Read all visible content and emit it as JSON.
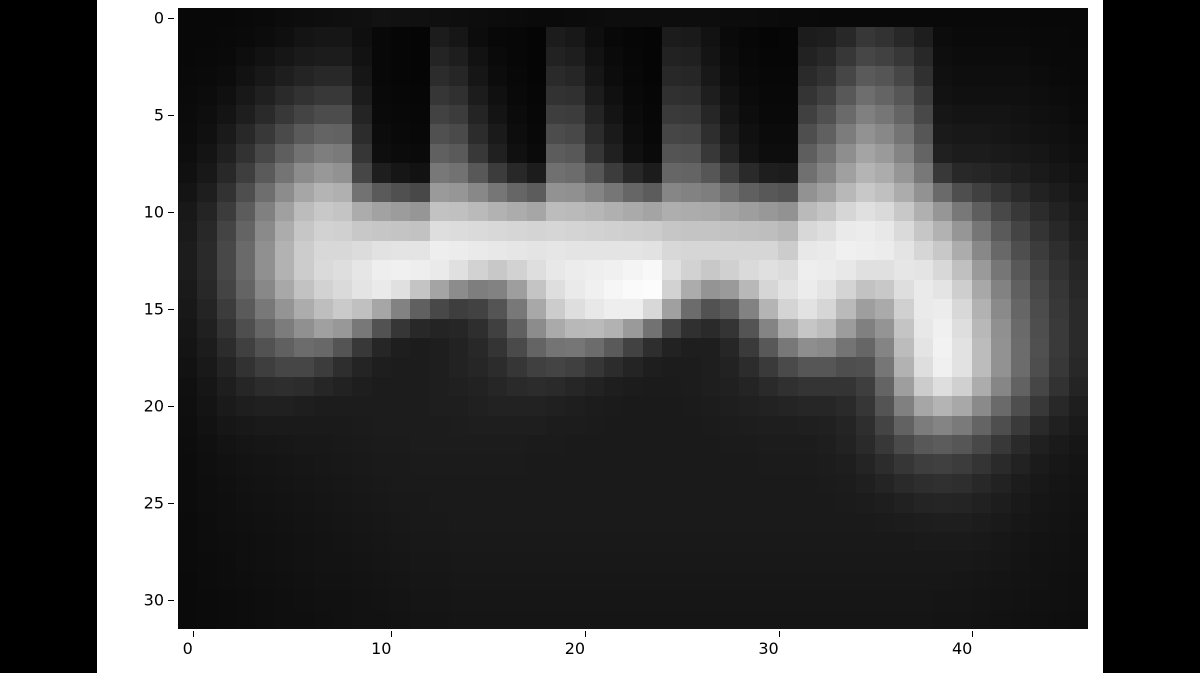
{
  "figure": {
    "background_color": "#000000",
    "panel_color": "#ffffff",
    "font_family": "DejaVu Sans",
    "tick_fontsize": 16,
    "tick_color": "#000000"
  },
  "heatmap": {
    "type": "heatmap",
    "cmap": "gray",
    "interpolation": "nearest",
    "aspect": "auto",
    "vmin": 0,
    "vmax": 255,
    "ncols": 47,
    "nrows": 32,
    "xlim": [
      -0.5,
      46.5
    ],
    "ylim": [
      31.5,
      -0.5
    ],
    "xticks": [
      0,
      10,
      20,
      30,
      40
    ],
    "yticks": [
      0,
      5,
      10,
      15,
      20,
      25,
      30
    ],
    "xtick_labels": [
      "0",
      "10",
      "20",
      "30",
      "40"
    ],
    "ytick_labels": [
      "0",
      "5",
      "10",
      "15",
      "20",
      "25",
      "30"
    ],
    "data": [
      [
        8,
        8,
        8,
        9,
        10,
        12,
        13,
        14,
        15,
        16,
        18,
        17,
        16,
        15,
        14,
        13,
        12,
        11,
        10,
        10,
        11,
        12,
        13,
        13,
        13,
        13,
        13,
        13,
        12,
        12,
        11,
        10,
        10,
        9,
        9,
        9,
        9,
        9,
        9,
        9,
        9,
        9,
        9,
        9,
        8,
        8,
        8
      ],
      [
        8,
        8,
        9,
        10,
        12,
        15,
        20,
        22,
        22,
        15,
        8,
        6,
        5,
        28,
        22,
        12,
        8,
        7,
        5,
        28,
        24,
        14,
        8,
        6,
        5,
        28,
        26,
        18,
        10,
        7,
        5,
        6,
        28,
        30,
        40,
        55,
        50,
        40,
        30,
        12,
        10,
        10,
        10,
        10,
        9,
        9,
        8
      ],
      [
        8,
        9,
        10,
        14,
        18,
        22,
        26,
        28,
        28,
        18,
        8,
        6,
        5,
        36,
        30,
        18,
        10,
        7,
        5,
        34,
        30,
        18,
        10,
        7,
        5,
        34,
        32,
        20,
        12,
        8,
        6,
        6,
        34,
        40,
        55,
        70,
        65,
        55,
        40,
        14,
        12,
        12,
        12,
        12,
        10,
        9,
        9
      ],
      [
        9,
        10,
        12,
        18,
        24,
        30,
        36,
        40,
        40,
        22,
        8,
        6,
        5,
        44,
        38,
        22,
        12,
        8,
        5,
        42,
        38,
        22,
        12,
        8,
        5,
        40,
        38,
        24,
        14,
        9,
        7,
        7,
        42,
        50,
        70,
        90,
        85,
        70,
        48,
        16,
        14,
        14,
        14,
        14,
        12,
        10,
        9
      ],
      [
        10,
        12,
        16,
        24,
        32,
        42,
        50,
        56,
        56,
        28,
        9,
        7,
        6,
        54,
        48,
        28,
        16,
        9,
        6,
        50,
        48,
        28,
        16,
        9,
        6,
        48,
        46,
        30,
        18,
        11,
        8,
        8,
        52,
        64,
        88,
        110,
        100,
        86,
        60,
        18,
        16,
        16,
        16,
        16,
        14,
        12,
        10
      ],
      [
        11,
        14,
        20,
        30,
        42,
        56,
        68,
        76,
        76,
        36,
        10,
        8,
        7,
        66,
        60,
        36,
        20,
        11,
        7,
        62,
        60,
        36,
        20,
        11,
        7,
        58,
        56,
        38,
        22,
        13,
        9,
        9,
        64,
        80,
        106,
        128,
        118,
        100,
        72,
        22,
        20,
        20,
        20,
        18,
        16,
        14,
        11
      ],
      [
        12,
        16,
        26,
        40,
        56,
        74,
        90,
        100,
        98,
        44,
        12,
        9,
        8,
        80,
        74,
        44,
        26,
        13,
        8,
        76,
        72,
        44,
        26,
        13,
        8,
        70,
        68,
        46,
        28,
        16,
        11,
        11,
        78,
        96,
        124,
        146,
        136,
        116,
        86,
        26,
        24,
        24,
        22,
        20,
        18,
        16,
        13
      ],
      [
        14,
        20,
        32,
        50,
        72,
        94,
        114,
        126,
        122,
        54,
        14,
        11,
        10,
        96,
        90,
        56,
        32,
        16,
        10,
        92,
        88,
        54,
        32,
        16,
        10,
        84,
        82,
        56,
        36,
        19,
        13,
        13,
        94,
        114,
        142,
        164,
        154,
        132,
        100,
        32,
        28,
        28,
        26,
        24,
        22,
        18,
        15
      ],
      [
        16,
        24,
        40,
        62,
        90,
        116,
        140,
        152,
        146,
        70,
        30,
        22,
        18,
        120,
        114,
        88,
        60,
        40,
        28,
        112,
        108,
        86,
        60,
        40,
        28,
        102,
        100,
        86,
        62,
        42,
        30,
        28,
        112,
        132,
        160,
        180,
        172,
        150,
        120,
        56,
        40,
        38,
        34,
        30,
        26,
        22,
        18
      ],
      [
        20,
        30,
        50,
        78,
        110,
        140,
        166,
        180,
        176,
        114,
        90,
        80,
        72,
        154,
        150,
        136,
        118,
        102,
        92,
        146,
        144,
        132,
        118,
        102,
        92,
        134,
        130,
        126,
        110,
        96,
        88,
        84,
        146,
        160,
        184,
        200,
        192,
        172,
        146,
        106,
        78,
        64,
        52,
        42,
        34,
        28,
        22
      ],
      [
        24,
        36,
        60,
        92,
        128,
        160,
        188,
        200,
        196,
        172,
        162,
        156,
        150,
        194,
        192,
        186,
        178,
        172,
        166,
        188,
        186,
        182,
        176,
        170,
        164,
        174,
        172,
        170,
        164,
        158,
        152,
        146,
        186,
        196,
        214,
        224,
        218,
        200,
        176,
        150,
        120,
        94,
        72,
        56,
        44,
        34,
        26
      ],
      [
        26,
        40,
        68,
        100,
        138,
        172,
        198,
        210,
        208,
        200,
        198,
        196,
        194,
        222,
        220,
        218,
        216,
        214,
        212,
        214,
        212,
        210,
        208,
        206,
        204,
        198,
        196,
        196,
        194,
        192,
        190,
        184,
        216,
        222,
        234,
        236,
        232,
        218,
        198,
        178,
        150,
        118,
        90,
        68,
        52,
        40,
        30
      ],
      [
        28,
        42,
        72,
        106,
        144,
        178,
        204,
        216,
        216,
        220,
        226,
        228,
        228,
        238,
        236,
        234,
        232,
        230,
        228,
        230,
        228,
        228,
        228,
        228,
        226,
        216,
        214,
        214,
        214,
        214,
        214,
        204,
        232,
        234,
        240,
        238,
        236,
        228,
        214,
        200,
        172,
        136,
        104,
        78,
        60,
        46,
        34
      ],
      [
        28,
        42,
        72,
        106,
        144,
        178,
        204,
        218,
        222,
        230,
        238,
        240,
        238,
        234,
        224,
        210,
        200,
        210,
        222,
        232,
        236,
        238,
        240,
        244,
        248,
        224,
        210,
        200,
        208,
        218,
        224,
        220,
        238,
        236,
        232,
        224,
        224,
        230,
        228,
        216,
        192,
        154,
        118,
        88,
        66,
        50,
        38
      ],
      [
        26,
        40,
        68,
        100,
        136,
        168,
        194,
        210,
        218,
        228,
        234,
        224,
        196,
        164,
        140,
        126,
        130,
        158,
        196,
        222,
        234,
        240,
        246,
        250,
        252,
        210,
        172,
        148,
        154,
        184,
        214,
        226,
        236,
        228,
        212,
        194,
        200,
        222,
        234,
        228,
        206,
        168,
        130,
        96,
        72,
        54,
        40
      ],
      [
        24,
        36,
        60,
        90,
        120,
        148,
        172,
        190,
        202,
        192,
        166,
        130,
        96,
        72,
        62,
        66,
        84,
        120,
        168,
        204,
        222,
        232,
        238,
        238,
        216,
        160,
        108,
        82,
        92,
        130,
        180,
        212,
        226,
        214,
        186,
        158,
        170,
        208,
        234,
        236,
        216,
        178,
        138,
        102,
        76,
        56,
        42
      ],
      [
        22,
        32,
        52,
        78,
        102,
        124,
        144,
        160,
        152,
        120,
        82,
        54,
        40,
        36,
        38,
        46,
        64,
        96,
        140,
        170,
        184,
        186,
        178,
        154,
        114,
        72,
        48,
        42,
        52,
        84,
        132,
        172,
        198,
        188,
        156,
        128,
        148,
        196,
        232,
        240,
        222,
        184,
        144,
        106,
        78,
        58,
        42
      ],
      [
        20,
        28,
        44,
        64,
        82,
        96,
        108,
        104,
        84,
        56,
        38,
        30,
        28,
        30,
        34,
        40,
        52,
        74,
        100,
        116,
        118,
        108,
        90,
        66,
        46,
        34,
        30,
        30,
        38,
        58,
        88,
        120,
        142,
        138,
        116,
        102,
        132,
        188,
        228,
        242,
        226,
        188,
        146,
        108,
        80,
        58,
        42
      ],
      [
        18,
        25,
        36,
        50,
        62,
        70,
        70,
        60,
        46,
        36,
        30,
        28,
        28,
        30,
        34,
        38,
        44,
        54,
        64,
        68,
        64,
        54,
        44,
        36,
        30,
        28,
        28,
        30,
        34,
        44,
        58,
        74,
        86,
        86,
        78,
        80,
        118,
        178,
        222,
        240,
        226,
        188,
        146,
        108,
        78,
        56,
        40
      ],
      [
        16,
        22,
        30,
        38,
        44,
        46,
        44,
        38,
        34,
        30,
        28,
        28,
        28,
        30,
        32,
        34,
        38,
        42,
        44,
        42,
        38,
        34,
        30,
        28,
        27,
        27,
        28,
        30,
        32,
        36,
        42,
        48,
        52,
        52,
        52,
        62,
        100,
        158,
        204,
        222,
        208,
        172,
        134,
        98,
        70,
        50,
        36
      ],
      [
        15,
        20,
        26,
        30,
        32,
        32,
        30,
        28,
        28,
        28,
        28,
        28,
        28,
        30,
        30,
        32,
        34,
        34,
        34,
        32,
        30,
        28,
        27,
        26,
        26,
        26,
        27,
        28,
        30,
        32,
        34,
        36,
        38,
        38,
        42,
        54,
        84,
        128,
        166,
        180,
        168,
        138,
        106,
        78,
        56,
        40,
        30
      ],
      [
        14,
        18,
        22,
        24,
        26,
        26,
        26,
        26,
        26,
        27,
        28,
        28,
        28,
        28,
        29,
        30,
        30,
        30,
        30,
        28,
        28,
        27,
        26,
        26,
        26,
        26,
        26,
        27,
        28,
        29,
        30,
        30,
        31,
        32,
        36,
        46,
        68,
        98,
        124,
        132,
        122,
        100,
        78,
        58,
        42,
        32,
        26
      ],
      [
        13,
        16,
        19,
        21,
        22,
        23,
        24,
        24,
        25,
        26,
        27,
        27,
        28,
        28,
        28,
        28,
        28,
        28,
        27,
        27,
        26,
        26,
        26,
        26,
        26,
        26,
        26,
        26,
        27,
        27,
        28,
        28,
        28,
        30,
        34,
        42,
        56,
        74,
        88,
        92,
        86,
        72,
        56,
        42,
        32,
        26,
        22
      ],
      [
        12,
        15,
        17,
        19,
        20,
        21,
        22,
        23,
        24,
        25,
        26,
        26,
        27,
        27,
        27,
        27,
        27,
        27,
        26,
        26,
        26,
        26,
        26,
        26,
        26,
        26,
        26,
        26,
        26,
        26,
        27,
        27,
        27,
        28,
        30,
        36,
        44,
        54,
        62,
        64,
        60,
        52,
        42,
        34,
        27,
        23,
        20
      ],
      [
        12,
        14,
        16,
        18,
        19,
        20,
        21,
        22,
        23,
        24,
        25,
        26,
        26,
        26,
        26,
        26,
        26,
        26,
        26,
        26,
        26,
        26,
        26,
        26,
        26,
        26,
        26,
        26,
        26,
        26,
        26,
        26,
        26,
        27,
        28,
        31,
        36,
        42,
        46,
        48,
        46,
        40,
        34,
        28,
        24,
        21,
        19
      ],
      [
        12,
        14,
        15,
        17,
        18,
        19,
        20,
        21,
        22,
        23,
        24,
        25,
        25,
        26,
        26,
        26,
        26,
        26,
        26,
        26,
        26,
        26,
        26,
        26,
        26,
        26,
        26,
        26,
        26,
        26,
        26,
        26,
        26,
        26,
        27,
        28,
        30,
        33,
        36,
        37,
        36,
        33,
        29,
        25,
        22,
        20,
        18
      ],
      [
        11,
        13,
        15,
        16,
        17,
        18,
        19,
        20,
        21,
        22,
        23,
        24,
        25,
        25,
        26,
        26,
        26,
        26,
        26,
        26,
        26,
        26,
        26,
        26,
        26,
        26,
        26,
        26,
        26,
        26,
        26,
        26,
        26,
        26,
        26,
        26,
        27,
        28,
        29,
        30,
        30,
        28,
        26,
        23,
        21,
        19,
        17
      ],
      [
        11,
        13,
        14,
        15,
        16,
        17,
        18,
        19,
        20,
        21,
        22,
        23,
        24,
        24,
        25,
        25,
        25,
        25,
        25,
        25,
        25,
        25,
        25,
        25,
        25,
        25,
        25,
        25,
        25,
        25,
        25,
        25,
        25,
        25,
        25,
        25,
        25,
        25,
        26,
        26,
        26,
        25,
        23,
        21,
        19,
        18,
        16
      ],
      [
        11,
        12,
        13,
        15,
        16,
        17,
        18,
        19,
        19,
        20,
        21,
        22,
        23,
        23,
        24,
        24,
        24,
        24,
        24,
        24,
        24,
        24,
        24,
        24,
        24,
        24,
        24,
        24,
        24,
        24,
        24,
        24,
        24,
        24,
        24,
        24,
        24,
        24,
        24,
        24,
        24,
        23,
        22,
        20,
        18,
        17,
        16
      ],
      [
        10,
        12,
        13,
        14,
        15,
        16,
        17,
        18,
        18,
        19,
        20,
        21,
        22,
        22,
        23,
        23,
        23,
        23,
        23,
        23,
        23,
        23,
        23,
        23,
        23,
        23,
        23,
        23,
        23,
        23,
        23,
        23,
        23,
        23,
        23,
        23,
        23,
        23,
        23,
        23,
        22,
        21,
        20,
        19,
        18,
        16,
        15
      ],
      [
        10,
        11,
        12,
        13,
        14,
        15,
        16,
        17,
        17,
        18,
        19,
        20,
        21,
        21,
        22,
        22,
        22,
        22,
        22,
        22,
        22,
        22,
        22,
        22,
        22,
        22,
        22,
        22,
        22,
        22,
        22,
        22,
        22,
        22,
        22,
        22,
        22,
        22,
        22,
        21,
        21,
        20,
        19,
        18,
        17,
        16,
        15
      ],
      [
        10,
        11,
        12,
        13,
        14,
        15,
        15,
        16,
        17,
        18,
        18,
        19,
        20,
        20,
        21,
        21,
        21,
        21,
        21,
        21,
        21,
        21,
        21,
        21,
        21,
        21,
        21,
        21,
        21,
        21,
        21,
        21,
        21,
        21,
        21,
        21,
        21,
        21,
        21,
        20,
        20,
        19,
        18,
        17,
        16,
        15,
        14
      ]
    ]
  }
}
